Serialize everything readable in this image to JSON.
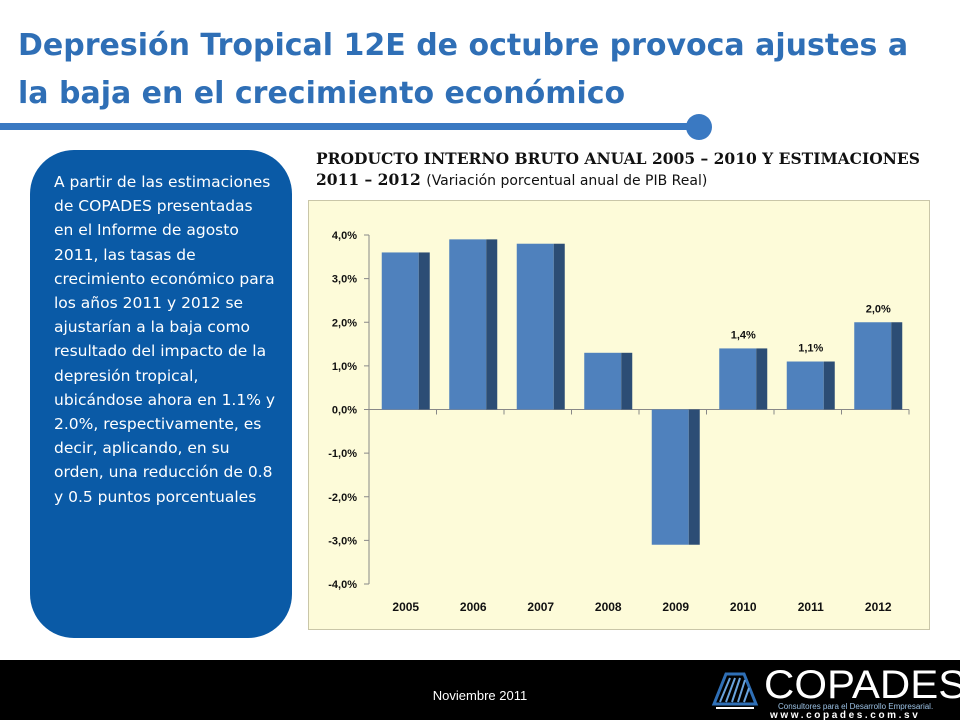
{
  "slide": {
    "title": "Depresión Tropical 12E de octubre provoca ajustes a la baja en el crecimiento económico",
    "sidebar_text": "A partir de las estimaciones de COPADES presentadas en el Informe de agosto 2011, las tasas de crecimiento económico para los años 2011 y 2012 se ajustarían a la baja como resultado del impacto de la depresión tropical, ubicándose ahora en 1.1% y 2.0%, respectivamente, es decir, aplicando, en su orden, una reducción de 0.8 y 0.5 puntos porcentuales",
    "chart_heading": "PRODUCTO INTERNO BRUTO ANUAL 2005 – 2010 Y ESTIMACIONES 2011 – 2012",
    "chart_subheading": "(Variación porcentual anual de PIB Real)",
    "footer_date": "Noviembre 2011",
    "logo_name": "COPADES",
    "logo_tagline": "Consultores para el Desarrollo Empresarial.",
    "logo_url": "www.copades.com.sv"
  },
  "colors": {
    "title": "#2f6fb6",
    "sidebar": "#0a5aa6",
    "bar_front": "#4f81bd",
    "bar_side": "#2c4d75",
    "plot_bg": "#fdfbd9",
    "footer": "#000000"
  },
  "chart_data": {
    "type": "bar",
    "categories": [
      "2005",
      "2006",
      "2007",
      "2008",
      "2009",
      "2010",
      "2011",
      "2012"
    ],
    "values": [
      3.6,
      3.9,
      3.8,
      1.3,
      -3.1,
      1.4,
      1.1,
      2.0
    ],
    "data_labels": [
      "",
      "",
      "",
      "",
      "",
      "1,4%",
      "1,1%",
      "2,0%"
    ],
    "y_ticks": [
      "4,0%",
      "3,0%",
      "2,0%",
      "1,0%",
      "0,0%",
      "-1,0%",
      "-2,0%",
      "-3,0%",
      "-4,0%"
    ],
    "ylim": [
      -4,
      4
    ],
    "grid": false,
    "title": "",
    "xlabel": "",
    "ylabel": ""
  }
}
